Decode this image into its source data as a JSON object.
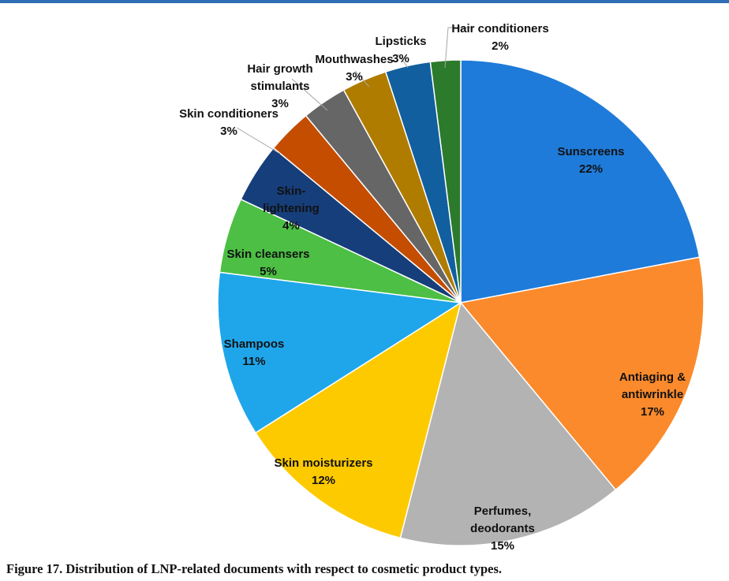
{
  "chart_data": {
    "type": "pie",
    "title": "",
    "slices": [
      {
        "label": [
          "Sunscreens"
        ],
        "value": 22,
        "pct_label": "22%",
        "color": "#1f7bd9"
      },
      {
        "label": [
          "Antiaging &",
          "antiwrinkle"
        ],
        "value": 17,
        "pct_label": "17%",
        "color": "#fb8a2c"
      },
      {
        "label": [
          "Perfumes,",
          "deodorants"
        ],
        "value": 15,
        "pct_label": "15%",
        "color": "#b3b3b3"
      },
      {
        "label": [
          "Skin moisturizers"
        ],
        "value": 12,
        "pct_label": "12%",
        "color": "#fdca00"
      },
      {
        "label": [
          "Shampoos"
        ],
        "value": 11,
        "pct_label": "11%",
        "color": "#1fa6ea"
      },
      {
        "label": [
          "Skin cleansers"
        ],
        "value": 5,
        "pct_label": "5%",
        "color": "#4cbf44"
      },
      {
        "label": [
          "Skin-",
          "lightening"
        ],
        "value": 4,
        "pct_label": "4%",
        "color": "#163e7a"
      },
      {
        "label": [
          "Skin conditioners"
        ],
        "value": 3,
        "pct_label": "3%",
        "color": "#c44d00"
      },
      {
        "label": [
          "Hair growth",
          "stimulants"
        ],
        "value": 3,
        "pct_label": "3%",
        "color": "#666666"
      },
      {
        "label": [
          "Mouthwashes"
        ],
        "value": 3,
        "pct_label": "3%",
        "color": "#b07c00"
      },
      {
        "label": [
          "Lipsticks"
        ],
        "value": 3,
        "pct_label": "3%",
        "color": "#125f9f"
      },
      {
        "label": [
          "Hair conditioners"
        ],
        "value": 2,
        "pct_label": "2%",
        "color": "#2c7a2c"
      }
    ]
  },
  "caption": "Figure 17. Distribution of LNP-related documents with respect to cosmetic product types."
}
